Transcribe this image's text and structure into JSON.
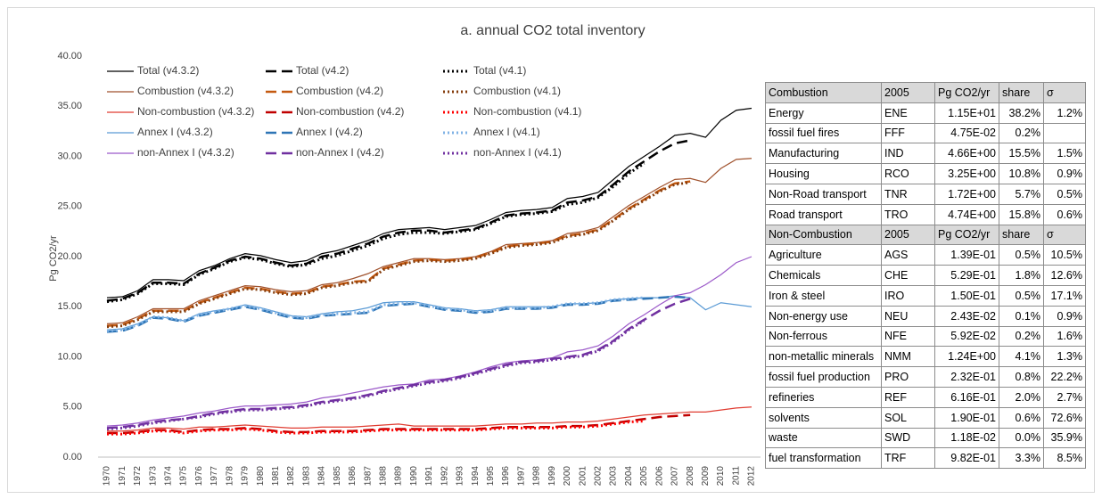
{
  "chart_data": {
    "type": "line",
    "title": "a. annual CO2 total inventory",
    "y_label": "Pg CO2/yr",
    "categories": [
      "1970",
      "1971",
      "1972",
      "1973",
      "1974",
      "1975",
      "1976",
      "1977",
      "1978",
      "1979",
      "1980",
      "1981",
      "1982",
      "1983",
      "1984",
      "1985",
      "1986",
      "1987",
      "1988",
      "1989",
      "1990",
      "1991",
      "1992",
      "1993",
      "1994",
      "1995",
      "1996",
      "1997",
      "1998",
      "1999",
      "2000",
      "2001",
      "2002",
      "2003",
      "2004",
      "2005",
      "2006",
      "2007",
      "2008",
      "2009",
      "2010",
      "2011",
      "2012"
    ],
    "ylim": [
      0,
      40
    ],
    "yticks": [
      {
        "value": 0,
        "label": "0.00"
      },
      {
        "value": 5,
        "label": "5.00"
      },
      {
        "value": 10,
        "label": "10.00"
      },
      {
        "value": 15,
        "label": "15.00"
      },
      {
        "value": 20,
        "label": "20.00"
      },
      {
        "value": 25,
        "label": "25.00"
      },
      {
        "value": 30,
        "label": "30.00"
      },
      {
        "value": 35,
        "label": "35.00"
      },
      {
        "value": 40,
        "label": "40.00"
      }
    ],
    "grid": false,
    "series": [
      {
        "name": "Total (v4.3.2)",
        "color": "#000000",
        "line_style": "solid",
        "values": [
          15.9,
          16.0,
          16.6,
          17.7,
          17.7,
          17.6,
          18.6,
          19.1,
          19.8,
          20.3,
          20.1,
          19.7,
          19.4,
          19.6,
          20.3,
          20.6,
          21.1,
          21.6,
          22.3,
          22.7,
          22.8,
          22.9,
          22.7,
          22.9,
          23.1,
          23.7,
          24.4,
          24.6,
          24.7,
          24.9,
          25.8,
          26.0,
          26.4,
          27.7,
          29.0,
          30.0,
          31.0,
          32.1,
          32.3,
          31.9,
          33.6,
          34.6,
          34.8
        ]
      },
      {
        "name": "Total (v4.2)",
        "color": "#000000",
        "line_style": "dashed",
        "values": [
          15.6,
          15.8,
          16.4,
          17.4,
          17.4,
          17.3,
          18.3,
          18.9,
          19.6,
          20.0,
          19.8,
          19.4,
          19.1,
          19.3,
          20.0,
          20.3,
          20.8,
          21.3,
          22.0,
          22.4,
          22.6,
          22.6,
          22.4,
          22.6,
          22.8,
          23.4,
          24.1,
          24.3,
          24.4,
          24.6,
          25.4,
          25.6,
          26.0,
          27.2,
          28.5,
          29.5,
          30.5,
          31.3,
          31.6,
          null,
          null,
          null,
          null
        ]
      },
      {
        "name": "Total (v4.1)",
        "color": "#000000",
        "line_style": "dotted",
        "values": [
          15.5,
          15.7,
          16.3,
          17.3,
          17.3,
          17.2,
          18.2,
          18.8,
          19.5,
          19.9,
          19.7,
          19.3,
          19.0,
          19.2,
          19.8,
          20.1,
          20.6,
          21.1,
          21.8,
          22.2,
          22.4,
          22.4,
          22.3,
          22.5,
          22.7,
          23.3,
          24.0,
          24.2,
          24.3,
          24.5,
          25.2,
          25.4,
          25.9,
          27.0,
          28.3,
          29.3,
          null,
          null,
          null,
          null,
          null,
          null,
          null
        ]
      },
      {
        "name": "Combustion (v4.3.2)",
        "color": "#a0522d",
        "line_style": "solid",
        "values": [
          13.3,
          13.4,
          14.0,
          14.8,
          14.8,
          14.8,
          15.6,
          16.1,
          16.6,
          17.1,
          17.0,
          16.7,
          16.5,
          16.6,
          17.2,
          17.4,
          17.8,
          18.3,
          19.0,
          19.4,
          19.8,
          19.8,
          19.7,
          19.8,
          20.0,
          20.5,
          21.2,
          21.3,
          21.4,
          21.6,
          22.3,
          22.5,
          22.9,
          24.0,
          25.1,
          26.0,
          26.9,
          27.7,
          27.8,
          27.4,
          28.8,
          29.7,
          29.8
        ]
      },
      {
        "name": "Combustion (v4.2)",
        "color": "#c55a11",
        "line_style": "dashed",
        "values": [
          13.1,
          13.2,
          13.8,
          14.6,
          14.6,
          14.6,
          15.4,
          15.9,
          16.4,
          16.9,
          16.8,
          16.5,
          16.3,
          16.4,
          17.0,
          17.2,
          17.5,
          17.6,
          18.8,
          19.2,
          19.6,
          19.7,
          19.6,
          19.7,
          19.9,
          20.4,
          21.0,
          21.2,
          21.3,
          21.5,
          22.1,
          22.3,
          22.7,
          23.7,
          24.8,
          25.7,
          26.6,
          27.3,
          27.5,
          null,
          null,
          null,
          null
        ]
      },
      {
        "name": "Combustion (v4.1)",
        "color": "#843c0c",
        "line_style": "dotted",
        "values": [
          13.0,
          13.1,
          13.7,
          14.5,
          14.5,
          14.5,
          15.3,
          15.8,
          16.3,
          16.8,
          16.7,
          16.4,
          16.2,
          16.3,
          16.9,
          17.1,
          17.4,
          17.5,
          18.7,
          19.1,
          19.5,
          19.6,
          19.5,
          19.6,
          19.8,
          20.3,
          20.9,
          21.1,
          21.2,
          21.4,
          22.0,
          22.2,
          22.6,
          23.6,
          24.7,
          25.6,
          26.5,
          27.2,
          27.4,
          null,
          null,
          null,
          null
        ]
      },
      {
        "name": "Non-combustion (v4.3.2)",
        "color": "#e03c31",
        "line_style": "solid",
        "values": [
          2.6,
          2.6,
          2.7,
          2.9,
          2.9,
          2.8,
          3.0,
          3.0,
          3.1,
          3.2,
          3.1,
          3.0,
          2.9,
          2.9,
          3.0,
          3.0,
          3.0,
          3.1,
          3.2,
          3.3,
          3.1,
          3.1,
          3.1,
          3.1,
          3.1,
          3.2,
          3.3,
          3.3,
          3.4,
          3.4,
          3.5,
          3.5,
          3.6,
          3.8,
          4.0,
          4.2,
          4.3,
          4.4,
          4.5,
          4.5,
          4.7,
          4.9,
          5.0
        ]
      },
      {
        "name": "Non-combustion (v4.2)",
        "color": "#c00000",
        "line_style": "dashed",
        "values": [
          2.4,
          2.4,
          2.5,
          2.7,
          2.7,
          2.5,
          2.7,
          2.8,
          2.8,
          2.9,
          2.8,
          2.6,
          2.5,
          2.5,
          2.6,
          2.6,
          2.6,
          2.7,
          2.8,
          2.8,
          2.8,
          2.8,
          2.8,
          2.8,
          2.8,
          2.9,
          3.0,
          3.0,
          3.0,
          3.0,
          3.1,
          3.1,
          3.2,
          3.4,
          3.6,
          3.8,
          4.0,
          4.1,
          4.2,
          null,
          null,
          null,
          null
        ]
      },
      {
        "name": "Non-combustion (v4.1)",
        "color": "#ff0000",
        "line_style": "dotted",
        "values": [
          2.3,
          2.3,
          2.4,
          2.6,
          2.6,
          2.4,
          2.6,
          2.7,
          2.7,
          2.8,
          2.7,
          2.5,
          2.4,
          2.4,
          2.5,
          2.5,
          2.5,
          2.6,
          2.7,
          2.7,
          2.7,
          2.7,
          2.7,
          2.7,
          2.7,
          2.8,
          2.9,
          2.9,
          2.9,
          2.9,
          3.0,
          3.0,
          3.1,
          3.3,
          3.5,
          3.6,
          null,
          null,
          null,
          null,
          null,
          null,
          null
        ]
      },
      {
        "name": "Annex I (v4.3.2)",
        "color": "#5b9bd5",
        "line_style": "solid",
        "values": [
          12.7,
          12.8,
          13.3,
          14.0,
          13.9,
          13.6,
          14.3,
          14.6,
          14.8,
          15.2,
          14.9,
          14.5,
          14.1,
          14.0,
          14.3,
          14.5,
          14.6,
          14.9,
          15.4,
          15.5,
          15.5,
          15.2,
          14.9,
          14.8,
          14.6,
          14.7,
          15.0,
          15.0,
          15.0,
          15.0,
          15.3,
          15.3,
          15.4,
          15.7,
          15.8,
          15.9,
          15.9,
          16.1,
          15.9,
          14.7,
          15.4,
          15.2,
          15.0
        ]
      },
      {
        "name": "Annex I (v4.2)",
        "color": "#2e75b6",
        "line_style": "dashed",
        "values": [
          12.5,
          12.6,
          13.1,
          13.9,
          13.8,
          13.5,
          14.1,
          14.4,
          14.7,
          15.0,
          14.7,
          14.3,
          13.9,
          13.8,
          14.1,
          14.2,
          14.3,
          14.4,
          15.1,
          15.2,
          15.3,
          15.0,
          14.7,
          14.6,
          14.4,
          14.5,
          14.8,
          14.8,
          14.8,
          14.9,
          15.2,
          15.2,
          15.3,
          15.6,
          15.7,
          15.8,
          15.9,
          16.0,
          15.9,
          null,
          null,
          null,
          null
        ]
      },
      {
        "name": "Annex I (v4.1)",
        "color": "#7fb2e5",
        "line_style": "dotted",
        "values": [
          12.6,
          12.7,
          13.2,
          14.0,
          13.9,
          13.6,
          14.2,
          14.5,
          14.8,
          15.1,
          14.8,
          14.4,
          14.0,
          13.9,
          14.2,
          14.3,
          14.4,
          14.5,
          15.2,
          15.3,
          15.4,
          15.1,
          14.8,
          14.7,
          14.5,
          14.6,
          14.9,
          14.9,
          14.9,
          15.0,
          15.3,
          15.3,
          15.4,
          15.7,
          15.8,
          15.9,
          null,
          null,
          null,
          null,
          null,
          null,
          null
        ]
      },
      {
        "name": "non-Annex I (v4.3.2)",
        "color": "#9b59c9",
        "line_style": "solid",
        "values": [
          3.1,
          3.2,
          3.4,
          3.7,
          3.9,
          4.1,
          4.4,
          4.6,
          4.9,
          5.1,
          5.1,
          5.2,
          5.3,
          5.5,
          5.9,
          6.1,
          6.4,
          6.7,
          7.0,
          7.2,
          7.3,
          7.7,
          7.8,
          8.1,
          8.5,
          9.0,
          9.4,
          9.6,
          9.7,
          9.9,
          10.5,
          10.7,
          11.1,
          12.1,
          13.3,
          14.2,
          15.2,
          16.1,
          16.4,
          17.2,
          18.2,
          19.4,
          20.0
        ]
      },
      {
        "name": "non-Annex I (v4.2)",
        "color": "#7030a0",
        "line_style": "dashed",
        "values": [
          2.9,
          3.0,
          3.2,
          3.5,
          3.7,
          3.8,
          4.1,
          4.4,
          4.6,
          4.8,
          4.8,
          4.9,
          5.0,
          5.2,
          5.5,
          5.7,
          5.9,
          6.2,
          6.6,
          6.9,
          7.2,
          7.5,
          7.7,
          8.0,
          8.4,
          8.8,
          9.2,
          9.5,
          9.6,
          9.8,
          10.0,
          10.2,
          10.7,
          11.6,
          12.8,
          13.7,
          14.6,
          15.3,
          15.8,
          null,
          null,
          null,
          null
        ]
      },
      {
        "name": "non-Annex I (v4.1)",
        "color": "#7030a0",
        "line_style": "dotted",
        "values": [
          2.8,
          2.9,
          3.1,
          3.4,
          3.6,
          3.8,
          4.0,
          4.3,
          4.5,
          4.7,
          4.7,
          4.8,
          4.9,
          5.1,
          5.4,
          5.6,
          5.8,
          6.1,
          6.5,
          6.8,
          7.1,
          7.4,
          7.6,
          7.9,
          8.3,
          8.7,
          9.1,
          9.4,
          9.5,
          9.7,
          9.9,
          10.1,
          10.6,
          11.5,
          12.7,
          13.6,
          null,
          null,
          null,
          null,
          null,
          null,
          null
        ]
      }
    ]
  },
  "table": {
    "sections": [
      {
        "header": [
          "Combustion",
          "2005",
          "Pg CO2/yr",
          "share",
          "σ"
        ],
        "rows": [
          [
            "Energy",
            "ENE",
            "1.15E+01",
            "38.2%",
            "1.2%"
          ],
          [
            "fossil fuel fires",
            "FFF",
            "4.75E-02",
            "0.2%"
          ],
          [
            "Manufacturing",
            "IND",
            "4.66E+00",
            "15.5%",
            "1.5%"
          ],
          [
            "Housing",
            "RCO",
            "3.25E+00",
            "10.8%",
            "0.9%"
          ],
          [
            "Non-Road transport",
            "TNR",
            "1.72E+00",
            "5.7%",
            "0.5%"
          ],
          [
            "Road transport",
            "TRO",
            "4.74E+00",
            "15.8%",
            "0.6%"
          ]
        ]
      },
      {
        "header": [
          "Non-Combustion",
          "2005",
          "Pg CO2/yr",
          "share",
          "σ"
        ],
        "rows": [
          [
            "Agriculture",
            "AGS",
            "1.39E-01",
            "0.5%",
            "10.5%"
          ],
          [
            "Chemicals",
            "CHE",
            "5.29E-01",
            "1.8%",
            "12.6%"
          ],
          [
            "Iron & steel",
            "IRO",
            "1.50E-01",
            "0.5%",
            "17.1%"
          ],
          [
            "Non-energy use",
            "NEU",
            "2.43E-02",
            "0.1%",
            "0.9%"
          ],
          [
            "Non-ferrous",
            "NFE",
            "5.92E-02",
            "0.2%",
            "1.6%"
          ],
          [
            "non-metallic minerals",
            "NMM",
            "1.24E+00",
            "4.1%",
            "1.3%"
          ],
          [
            "fossil fuel production",
            "PRO",
            "2.32E-01",
            "0.8%",
            "22.2%"
          ],
          [
            "refineries",
            "REF",
            "6.16E-01",
            "2.0%",
            "2.7%"
          ],
          [
            "solvents",
            "SOL",
            "1.90E-01",
            "0.6%",
            "72.6%"
          ],
          [
            "waste",
            "SWD",
            "1.18E-02",
            "0.0%",
            "35.9%"
          ],
          [
            "fuel transformation",
            "TRF",
            "9.82E-01",
            "3.3%",
            "8.5%"
          ]
        ]
      }
    ]
  }
}
